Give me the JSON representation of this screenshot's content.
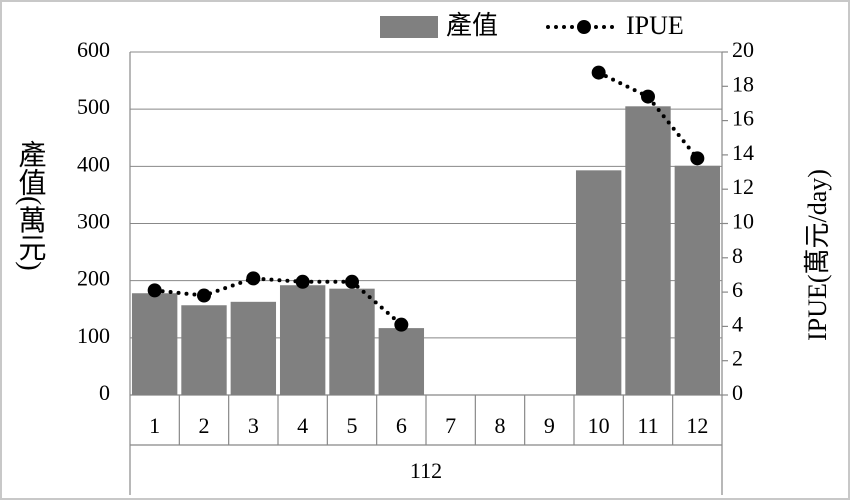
{
  "chart_data": {
    "type": "bar_line",
    "categories": [
      "1",
      "2",
      "3",
      "4",
      "5",
      "6",
      "7",
      "8",
      "9",
      "10",
      "11",
      "12"
    ],
    "x_group": "112",
    "series": [
      {
        "name": "產值",
        "type": "bar",
        "axis": "y",
        "color": "#808080",
        "values": [
          178,
          157,
          163,
          192,
          186,
          117,
          null,
          null,
          null,
          393,
          505,
          401
        ]
      },
      {
        "name": "IPUE",
        "type": "line",
        "axis": "y2",
        "color": "#000000",
        "values": [
          6.1,
          5.8,
          6.8,
          6.6,
          6.6,
          4.1,
          null,
          null,
          null,
          18.8,
          17.4,
          13.8
        ]
      }
    ],
    "ylabel": "產值(萬元)",
    "y2label": "IPUE(萬元/day)",
    "ylim": [
      0,
      600
    ],
    "yticks": [
      0,
      100,
      200,
      300,
      400,
      500,
      600
    ],
    "y2lim": [
      0,
      20
    ],
    "y2ticks": [
      0,
      2,
      4,
      6,
      8,
      10,
      12,
      14,
      16,
      18,
      20
    ],
    "grid": true,
    "legend": "top"
  }
}
